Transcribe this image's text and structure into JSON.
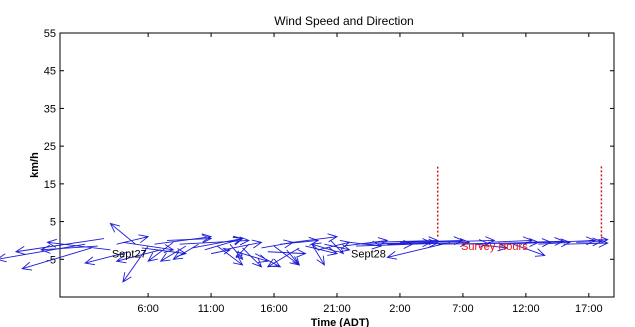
{
  "chart_data": {
    "type": "quiver",
    "title": "Wind Speed and Direction",
    "xlabel": "Time (ADT)",
    "ylabel": "km/h",
    "ylim": [
      -15,
      55
    ],
    "yticks": [
      55,
      45,
      35,
      25,
      15,
      5,
      -5
    ],
    "xlim": [
      0,
      40
    ],
    "xticks": [
      {
        "label": "6:00",
        "x": 9
      },
      {
        "label": "11:00",
        "x": 14
      },
      {
        "label": "16:00",
        "x": 19
      },
      {
        "label": "21:00",
        "x": 24
      },
      {
        "label": "2:00",
        "x": 29
      },
      {
        "label": "7:00",
        "x": 34
      },
      {
        "label": "12:00",
        "x": 39
      },
      {
        "label": "17:00",
        "x": 44
      }
    ],
    "annotations": [
      {
        "text": "Sept27",
        "x": 7.5,
        "y": -4.5,
        "color": "#000000"
      },
      {
        "text": "Sept28",
        "x": 26.5,
        "y": -4.5,
        "color": "#000000"
      },
      {
        "text": "Survey Hours",
        "x": 36.5,
        "y": -2.5,
        "color": "#ee1111"
      }
    ],
    "survey_markers": [
      {
        "x": 32,
        "y0": 1,
        "y1": 20
      },
      {
        "x": 45,
        "y0": 0,
        "y1": 20
      }
    ],
    "colors": {
      "arrows": "#1c1cd6",
      "survey": "#d01818",
      "axis": "#000000"
    },
    "series": [
      {
        "vectors": [
          {
            "x": 4.0,
            "y": -1.0,
            "u": -7.0,
            "v": -4.0
          },
          {
            "x": 4.5,
            "y": -2.0,
            "u": -5.5,
            "v": -5.5
          },
          {
            "x": 5.0,
            "y": -1.5,
            "u": -4.5,
            "v": -1.0
          },
          {
            "x": 5.5,
            "y": 0.5,
            "u": -7.0,
            "v": -3.5
          },
          {
            "x": 6.0,
            "y": -2.5,
            "u": -5.0,
            "v": 2.0
          },
          {
            "x": 6.5,
            "y": -1.0,
            "u": 2.5,
            "v": 2.0
          },
          {
            "x": 7.0,
            "y": -0.5,
            "u": 4.0,
            "v": -2.0
          },
          {
            "x": 7.5,
            "y": -3.0,
            "u": -3.5,
            "v": -3.0
          },
          {
            "x": 8.0,
            "y": -1.0,
            "u": -2.0,
            "v": 5.5
          },
          {
            "x": 8.5,
            "y": -2.0,
            "u": 3.5,
            "v": -1.5
          },
          {
            "x": 9.0,
            "y": -1.5,
            "u": -2.0,
            "v": -9.5
          },
          {
            "x": 9.5,
            "y": -1.0,
            "u": 4.5,
            "v": 2.0
          },
          {
            "x": 10.0,
            "y": -2.5,
            "u": -3.5,
            "v": -3.0
          },
          {
            "x": 10.5,
            "y": 0.0,
            "u": 3.5,
            "v": 0.5
          },
          {
            "x": 11.0,
            "y": -0.5,
            "u": -2.0,
            "v": -5.0
          },
          {
            "x": 11.5,
            "y": -1.0,
            "u": 5.5,
            "v": 1.0
          },
          {
            "x": 12.0,
            "y": -1.5,
            "u": -2.0,
            "v": -4.0
          },
          {
            "x": 12.5,
            "y": -2.0,
            "u": 4.0,
            "v": 2.5
          },
          {
            "x": 13.0,
            "y": -1.0,
            "u": -2.0,
            "v": -4.0
          },
          {
            "x": 13.5,
            "y": -2.5,
            "u": 3.0,
            "v": 3.0
          },
          {
            "x": 14.0,
            "y": -3.5,
            "u": 1.5,
            "v": 1.0
          },
          {
            "x": 14.5,
            "y": -1.5,
            "u": 2.0,
            "v": -5.0
          },
          {
            "x": 15.0,
            "y": -2.5,
            "u": 3.0,
            "v": 2.0
          },
          {
            "x": 15.5,
            "y": -1.0,
            "u": 1.0,
            "v": -4.0
          },
          {
            "x": 16.0,
            "y": -3.0,
            "u": 2.5,
            "v": -2.5
          },
          {
            "x": 16.5,
            "y": -2.0,
            "u": 1.5,
            "v": -5.0
          },
          {
            "x": 17.0,
            "y": -1.0,
            "u": -1.0,
            "v": -3.5
          },
          {
            "x": 17.5,
            "y": -3.5,
            "u": 2.0,
            "v": -3.5
          },
          {
            "x": 18.0,
            "y": -2.0,
            "u": 2.5,
            "v": 1.5
          },
          {
            "x": 18.5,
            "y": -3.0,
            "u": 3.0,
            "v": -0.5
          },
          {
            "x": 19.0,
            "y": -1.5,
            "u": 2.0,
            "v": -5.0
          },
          {
            "x": 19.5,
            "y": -1.0,
            "u": 3.0,
            "v": 1.0
          },
          {
            "x": 20.0,
            "y": -2.5,
            "u": 1.0,
            "v": -4.0
          },
          {
            "x": 20.5,
            "y": -0.5,
            "u": 3.5,
            "v": 1.5
          },
          {
            "x": 21.0,
            "y": -2.0,
            "u": -2.5,
            "v": -5.0
          },
          {
            "x": 21.5,
            "y": -1.5,
            "u": 2.5,
            "v": -2.0
          },
          {
            "x": 22.0,
            "y": -1.0,
            "u": 1.0,
            "v": -5.5
          },
          {
            "x": 22.5,
            "y": -2.5,
            "u": 2.5,
            "v": 2.0
          },
          {
            "x": 23.0,
            "y": -1.0,
            "u": 2.0,
            "v": -1.5
          },
          {
            "x": 23.5,
            "y": 0.0,
            "u": 1.0,
            "v": -3.5
          },
          {
            "x": 24.0,
            "y": -3.0,
            "u": -2.0,
            "v": 2.0
          },
          {
            "x": 24.5,
            "y": -1.5,
            "u": 3.5,
            "v": 1.5
          },
          {
            "x": 25.0,
            "y": -0.5,
            "u": 2.5,
            "v": -1.0
          },
          {
            "x": 25.5,
            "y": -1.5,
            "u": 4.5,
            "v": 0.5
          },
          {
            "x": 26.0,
            "y": -1.0,
            "u": 5.5,
            "v": 0.5
          },
          {
            "x": 27.0,
            "y": -0.5,
            "u": 5.0,
            "v": 0.5
          },
          {
            "x": 28.0,
            "y": -1.0,
            "u": 4.0,
            "v": 0.3
          },
          {
            "x": 29.0,
            "y": -0.5,
            "u": 5.0,
            "v": 0.5
          },
          {
            "x": 30.0,
            "y": -1.0,
            "u": 4.5,
            "v": 0.5
          },
          {
            "x": 31.0,
            "y": -0.5,
            "u": 5.5,
            "v": 0.5
          },
          {
            "x": 32.0,
            "y": -1.0,
            "u": 4.0,
            "v": 0.2
          },
          {
            "x": 33.0,
            "y": -0.5,
            "u": -5.0,
            "v": -4.0
          },
          {
            "x": 34.0,
            "y": -1.0,
            "u": 6.0,
            "v": 0.5
          },
          {
            "x": 35.0,
            "y": -1.0,
            "u": 2.5,
            "v": -1.0
          },
          {
            "x": 36.0,
            "y": -0.5,
            "u": 3.5,
            "v": 0.5
          },
          {
            "x": 37.0,
            "y": -1.0,
            "u": 4.0,
            "v": 0.5
          },
          {
            "x": 38.0,
            "y": -1.0,
            "u": 2.5,
            "v": -3.0
          },
          {
            "x": 39.0,
            "y": -0.5,
            "u": 3.0,
            "v": 0.3
          },
          {
            "x": 40.0,
            "y": -1.0,
            "u": 2.5,
            "v": 0.5
          },
          {
            "x": 41.0,
            "y": -0.5,
            "u": 3.5,
            "v": 0.5
          },
          {
            "x": 42.0,
            "y": -1.0,
            "u": 3.5,
            "v": 0.3
          },
          {
            "x": 43.0,
            "y": -0.5,
            "u": 2.0,
            "v": 0.2
          },
          {
            "x": 44.0,
            "y": 0.0,
            "u": 1.5,
            "v": 0.2
          }
        ]
      }
    ]
  }
}
